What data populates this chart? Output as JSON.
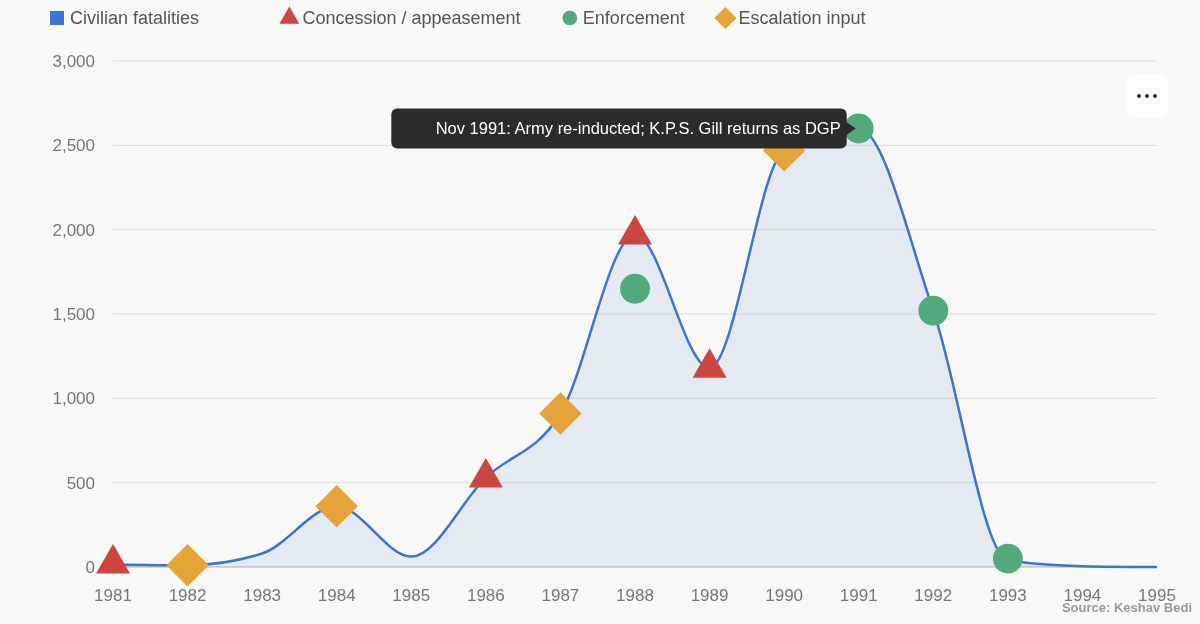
{
  "chart_data": {
    "type": "area",
    "x": [
      1981,
      1982,
      1983,
      1984,
      1985,
      1986,
      1987,
      1988,
      1989,
      1990,
      1991,
      1992,
      1993,
      1994,
      1995
    ],
    "series": [
      {
        "name": "Civilian fatalities",
        "type": "area",
        "color": "#3b74d1",
        "marker": "none",
        "values": [
          15,
          10,
          80,
          360,
          62,
          530,
          910,
          1970,
          1180,
          2470,
          2600,
          1520,
          40,
          5,
          0
        ]
      },
      {
        "name": "Concession / appeasement",
        "type": "scatter",
        "color": "#cc4541",
        "marker": "triangle",
        "x": [
          1981,
          1986,
          1988,
          1989
        ],
        "values": [
          20,
          530,
          1970,
          1180
        ]
      },
      {
        "name": "Enforcement",
        "type": "scatter",
        "color": "#52aa7c",
        "marker": "circle",
        "x": [
          1988,
          1991,
          1992,
          1993
        ],
        "values": [
          1650,
          2600,
          1520,
          50
        ]
      },
      {
        "name": "Escalation input",
        "type": "scatter",
        "color": "#e4a43a",
        "marker": "diamond",
        "x": [
          1982,
          1984,
          1987,
          1990
        ],
        "values": [
          10,
          360,
          910,
          2470
        ]
      }
    ],
    "xlim": [
      1981,
      1995
    ],
    "xticks": [
      1981,
      1982,
      1983,
      1984,
      1985,
      1986,
      1987,
      1988,
      1989,
      1990,
      1991,
      1992,
      1993,
      1994,
      1995
    ],
    "ylim": [
      0,
      3000
    ],
    "yticks": [
      0,
      {
        "value": 500,
        "label": "500"
      },
      {
        "value": 1000,
        "label": "1,000"
      },
      {
        "value": 1500,
        "label": "1,500"
      },
      {
        "value": 2000,
        "label": "2,000"
      },
      {
        "value": 2500,
        "label": "2,500"
      },
      {
        "value": 3000,
        "label": "3,000"
      }
    ],
    "grid": "y",
    "legend": "top left",
    "annotations": [
      {
        "text": "Nov 1991: Army re-inducted; K.P.S. Gill returns as DGP",
        "x": 1991,
        "y": 2600
      },
      "Source: Keshav Bedi"
    ]
  }
}
